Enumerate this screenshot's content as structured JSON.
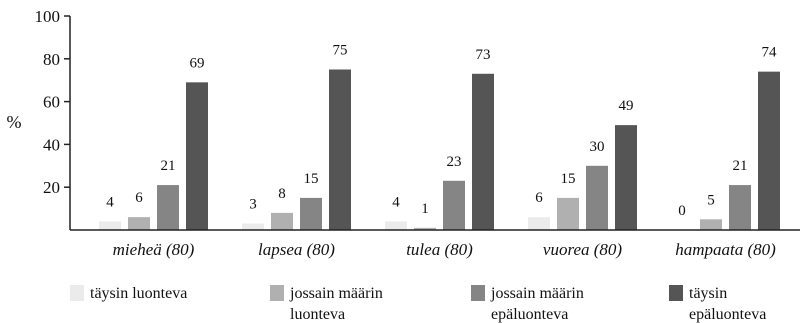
{
  "chart_data": {
    "type": "bar",
    "title": "",
    "xlabel": "",
    "ylabel": "%",
    "ylim": [
      0,
      100
    ],
    "yticks": [
      "20",
      "40",
      "60",
      "80",
      "100"
    ],
    "grid": false,
    "legend_position": "bottom",
    "categories": [
      "mieheä (80)",
      "lapsea (80)",
      "tulea (80)",
      "vuorea (80)",
      "hampaata (80)"
    ],
    "series": [
      {
        "name": "täysin luonteva",
        "color": "#ebebeb",
        "values": [
          4,
          3,
          4,
          6,
          0
        ]
      },
      {
        "name": "jossain määrin luonteva",
        "color": "#b0b0b0",
        "values": [
          6,
          8,
          1,
          15,
          5
        ]
      },
      {
        "name": "jossain määrin epäluonteva",
        "color": "#858585",
        "values": [
          21,
          15,
          23,
          30,
          21
        ]
      },
      {
        "name": "täysin epäluonteva",
        "color": "#555555",
        "values": [
          69,
          75,
          73,
          49,
          74
        ]
      }
    ],
    "legend_lines": [
      [
        "täysin luonteva"
      ],
      [
        "jossain määrin",
        "luonteva"
      ],
      [
        "jossain määrin",
        "epäluonteva"
      ],
      [
        "täysin",
        "epäluonteva"
      ]
    ]
  }
}
